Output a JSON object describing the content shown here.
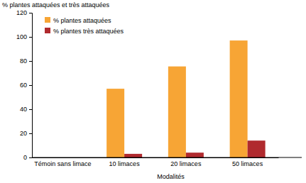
{
  "chart_data": {
    "type": "bar",
    "y_label": "% plantes attaquées et très attaquées",
    "x_label": "Modalités",
    "categories": [
      "Témoin sans limace",
      "10 limaces",
      "20 limaces",
      "50 limaces"
    ],
    "series": [
      {
        "name": "% plantes attaquées",
        "color": "#f7a535",
        "values": [
          0,
          57,
          75.5,
          97
        ]
      },
      {
        "name": "% plantes très attaquées",
        "color": "#b02a2e",
        "values": [
          0,
          3,
          4,
          14
        ]
      }
    ],
    "ylim": [
      0,
      120
    ],
    "yticks": [
      0,
      20,
      40,
      60,
      80,
      100,
      120
    ],
    "grid": false,
    "legend": "upper left"
  }
}
